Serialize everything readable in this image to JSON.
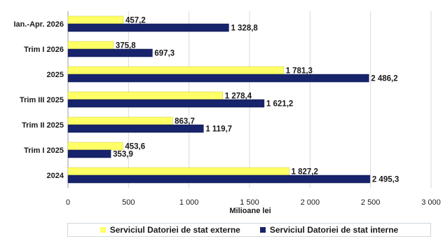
{
  "chart_data": {
    "type": "bar",
    "orientation": "horizontal",
    "categories": [
      "Ian.-Apr. 2026",
      "Trim I 2026",
      "2025",
      "Trim III 2025",
      "Trim II 2025",
      "Trim I 2025",
      "2024"
    ],
    "series": [
      {
        "name": "Serviciul Datoriei de stat externe",
        "color": "#ffff66",
        "values": [
          457.2,
          375.8,
          1781.3,
          1278.4,
          863.7,
          453.6,
          1827.2
        ],
        "labels": [
          "457,2",
          "375,8",
          "1 781,3",
          "1 278,4",
          "863,7",
          "453,6",
          "1 827,2"
        ]
      },
      {
        "name": "Serviciul Datoriei de stat interne",
        "color": "#17246b",
        "values": [
          1328.8,
          697.3,
          2486.2,
          1621.2,
          1119.7,
          353.9,
          2495.3
        ],
        "labels": [
          "1 328,8",
          "697,3",
          "2 486,2",
          "1 621,2",
          "1 119,7",
          "353,9",
          "2 495,3"
        ]
      }
    ],
    "xlabel": "Milioane lei",
    "xlim": [
      0,
      3000
    ],
    "xticks": [
      0,
      500,
      1000,
      1500,
      2000,
      2500,
      3000
    ],
    "xtick_labels": [
      "0",
      "500",
      "1 000",
      "1 500",
      "2 000",
      "2 500",
      "3 000"
    ],
    "grid": true,
    "legend_position": "bottom"
  }
}
